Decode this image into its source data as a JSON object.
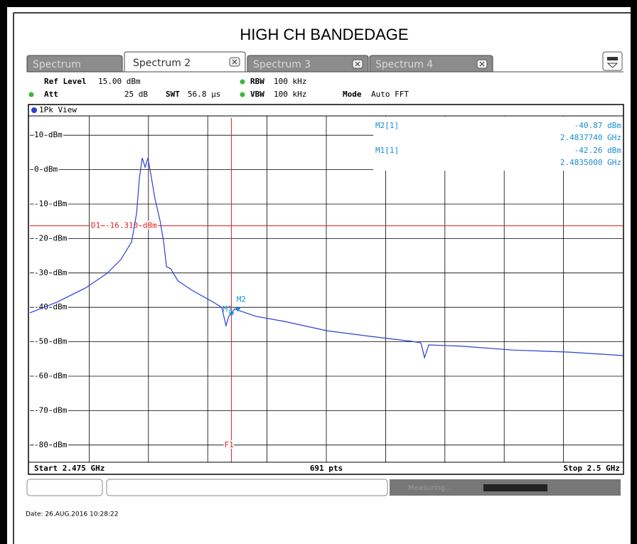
{
  "title": "HIGH CH BANDEDAGE",
  "tabs": [
    "Spectrum",
    "Spectrum 2",
    "Spectrum 3",
    "Spectrum 4"
  ],
  "active_tab": 1,
  "settings": {
    "ref_level_label": "Ref Level",
    "ref_level": "15.00 dBm",
    "att_label": "Att",
    "att": "25 dB",
    "swt_label": "SWT",
    "swt": "56.8 µs",
    "rbw_label": "RBW",
    "rbw": "100 kHz",
    "vbw_label": "VBW",
    "vbw": "100 kHz",
    "mode_label": "Mode",
    "mode": "Auto FFT"
  },
  "plot": {
    "view": "1Pk View",
    "ylim": [
      -85,
      15
    ],
    "yticks": [
      {
        "value": 10,
        "label": "10 dBm"
      },
      {
        "value": 0,
        "label": "0 dBm"
      },
      {
        "value": -10,
        "label": "-10 dBm"
      },
      {
        "value": -20,
        "label": "-20 dBm"
      },
      {
        "value": -30,
        "label": "-30 dBm"
      },
      {
        "value": -40,
        "label": "-40 dBm"
      },
      {
        "value": -50,
        "label": "-50 dBm"
      },
      {
        "value": -60,
        "label": "-60 dBm"
      },
      {
        "value": -70,
        "label": "-70 dBm"
      },
      {
        "value": -80,
        "label": "-80 dBm"
      }
    ],
    "xlim": [
      2.475,
      2.5
    ],
    "xgrid": [
      2.4775,
      2.48,
      2.4825,
      2.485,
      2.4875,
      2.49,
      2.4925,
      2.495,
      2.4975
    ],
    "trace": {
      "color": "#2b3fd6",
      "x": [
        2.475,
        2.47614,
        2.47734,
        2.47824,
        2.47884,
        2.47929,
        2.4795,
        2.47962,
        2.47974,
        2.47986,
        2.47998,
        2.4801,
        2.48028,
        2.48049,
        2.48064,
        2.48076,
        2.48094,
        2.48124,
        2.48183,
        2.48273,
        2.48309,
        2.48327,
        2.48339,
        2.48363,
        2.48453,
        2.48573,
        2.48753,
        2.48933,
        2.49113,
        2.49149,
        2.49164,
        2.49182,
        2.49323,
        2.49532,
        2.49772,
        2.5
      ],
      "y": [
        -41.6,
        -38.5,
        -34.4,
        -30.2,
        -26.1,
        -21,
        -12.7,
        -2.4,
        3.4,
        0.7,
        3.4,
        -1.3,
        -8.6,
        -14.8,
        -21,
        -28.2,
        -28.8,
        -32.3,
        -35,
        -38.5,
        -40,
        -45.3,
        -42.6,
        -40.5,
        -42.6,
        -44.1,
        -46.8,
        -48.4,
        -49.9,
        -50.3,
        -54.6,
        -50.9,
        -51.3,
        -52.4,
        -53,
        -54
      ]
    },
    "d1": {
      "label": "D1 -16.310 dBm",
      "value": -16.31
    },
    "f1": {
      "label": "F1",
      "value": 2.4835
    },
    "markers": [
      {
        "name": "M2",
        "table_name": "M2[1]",
        "x": 2.483774,
        "x_label": "2.4837740 GHz",
        "y": -40.87,
        "y_label": "-40.87 dBm"
      },
      {
        "name": "M1",
        "table_name": "M1[1]",
        "x": 2.4835,
        "x_label": "2.4835000 GHz",
        "y": -42.26,
        "y_label": "-42.26 dBm"
      }
    ]
  },
  "footer": {
    "start": "Start 2.475 GHz",
    "points": "691 pts",
    "stop": "Stop 2.5 GHz"
  },
  "status": "Measuring...",
  "date": "Date: 26.AUG.2016  10:28:22"
}
